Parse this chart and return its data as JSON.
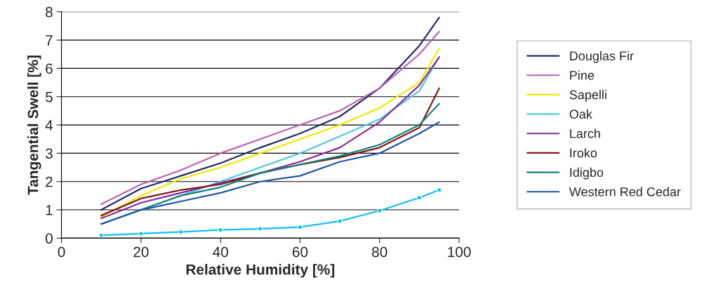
{
  "chart_data": {
    "type": "line",
    "xlabel": "Relative Humidity [%]",
    "ylabel": "Tangential Swell [%]",
    "x": [
      10,
      20,
      30,
      40,
      50,
      60,
      70,
      80,
      90,
      95
    ],
    "xlim": [
      0,
      100
    ],
    "xticks": [
      0,
      20,
      40,
      60,
      80,
      100
    ],
    "ylim": [
      0,
      8
    ],
    "yticks": [
      0,
      1,
      2,
      3,
      4,
      5,
      6,
      7,
      8
    ],
    "grid": "y",
    "legend": "right",
    "marker": "none",
    "series": [
      {
        "name": "Douglas Fir",
        "color": "#1f2a6b",
        "values": [
          1.0,
          1.75,
          2.2,
          2.65,
          3.2,
          3.7,
          4.3,
          5.3,
          6.8,
          7.8
        ]
      },
      {
        "name": "Pine",
        "color": "#c060b0",
        "values": [
          1.2,
          1.9,
          2.4,
          3.0,
          3.5,
          4.0,
          4.5,
          5.3,
          6.5,
          7.3
        ]
      },
      {
        "name": "Sapelli",
        "color": "#f0e800",
        "values": [
          0.75,
          1.5,
          2.1,
          2.5,
          3.0,
          3.5,
          4.0,
          4.6,
          5.5,
          6.7
        ]
      },
      {
        "name": "Oak",
        "color": "#50c8e0",
        "values": [
          0.5,
          1.0,
          1.5,
          2.0,
          2.5,
          3.0,
          3.6,
          4.2,
          5.2,
          6.4
        ]
      },
      {
        "name": "Larch",
        "color": "#8a2a9a",
        "values": [
          0.7,
          1.25,
          1.6,
          1.95,
          2.3,
          2.7,
          3.2,
          4.1,
          5.4,
          6.4
        ]
      },
      {
        "name": "Iroko",
        "color": "#801818",
        "values": [
          0.8,
          1.4,
          1.7,
          1.9,
          2.3,
          2.6,
          2.85,
          3.2,
          3.9,
          5.3
        ]
      },
      {
        "name": "Idigbo",
        "color": "#108080",
        "values": [
          0.5,
          1.0,
          1.5,
          1.8,
          2.3,
          2.6,
          2.9,
          3.3,
          4.0,
          4.75
        ]
      },
      {
        "name": "Western Red Cedar",
        "color": "#1f55a8",
        "values": [
          0.5,
          1.0,
          1.3,
          1.6,
          2.0,
          2.2,
          2.7,
          3.0,
          3.7,
          4.1
        ]
      },
      {
        "color": "#10c0f0",
        "marker": "square",
        "values": [
          0.1,
          0.16,
          0.22,
          0.29,
          0.33,
          0.39,
          0.6,
          0.97,
          1.43,
          1.7
        ]
      }
    ]
  }
}
